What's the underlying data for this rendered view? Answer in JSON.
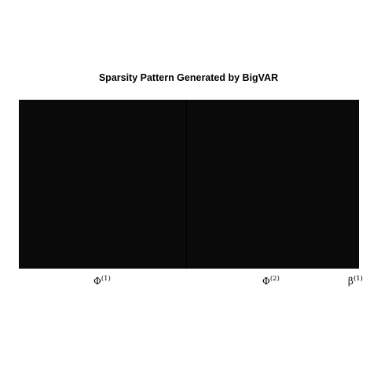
{
  "chart_data": {
    "type": "heatmap",
    "title": "Sparsity Pattern Generated by BigVAR",
    "blocks": [
      {
        "label": "Φ",
        "superscript": "(1)",
        "color": "#0a0a0a"
      },
      {
        "label": "Φ",
        "superscript": "(2)",
        "color": "#0a0a0a"
      },
      {
        "label": "β",
        "superscript": "(1)",
        "color": "#0a0a0a"
      }
    ],
    "grid": false,
    "separator_color": "#000000"
  }
}
